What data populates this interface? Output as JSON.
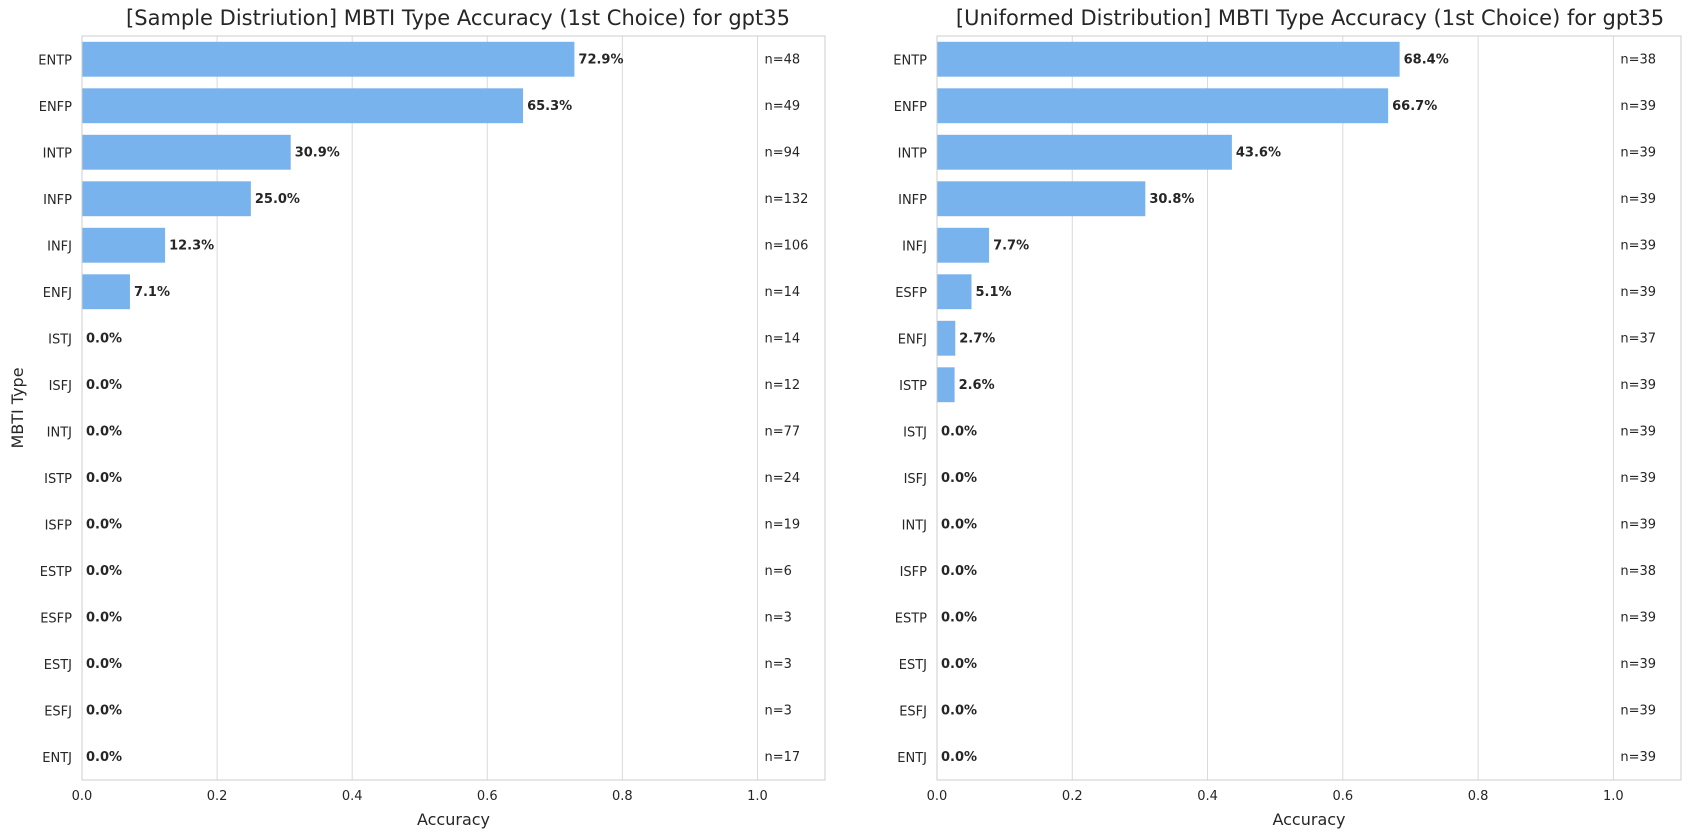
{
  "chart_data": [
    {
      "type": "bar",
      "orientation": "horizontal",
      "title": "[Sample Distriution] MBTI Type Accuracy (1st Choice) for gpt35",
      "xlabel": "Accuracy",
      "ylabel": "MBTI Type",
      "xlim": [
        0,
        1.1
      ],
      "xticks": [
        "0.0",
        "0.2",
        "0.4",
        "0.6",
        "0.8",
        "1.0"
      ],
      "grid": "vertical",
      "bar_color": "#78b3ed",
      "categories": [
        "ENTP",
        "ENFP",
        "INTP",
        "INFP",
        "INFJ",
        "ENFJ",
        "ISTJ",
        "ISFJ",
        "INTJ",
        "ISTP",
        "ISFP",
        "ESTP",
        "ESFP",
        "ESTJ",
        "ESFJ",
        "ENTJ"
      ],
      "values": [
        0.729,
        0.653,
        0.309,
        0.25,
        0.123,
        0.071,
        0,
        0,
        0,
        0,
        0,
        0,
        0,
        0,
        0,
        0
      ],
      "value_labels": [
        "72.9%",
        "65.3%",
        "30.9%",
        "25.0%",
        "12.3%",
        "7.1%",
        "0.0%",
        "0.0%",
        "0.0%",
        "0.0%",
        "0.0%",
        "0.0%",
        "0.0%",
        "0.0%",
        "0.0%",
        "0.0%"
      ],
      "n_labels": [
        "n=48",
        "n=49",
        "n=94",
        "n=132",
        "n=106",
        "n=14",
        "n=14",
        "n=12",
        "n=77",
        "n=24",
        "n=19",
        "n=6",
        "n=3",
        "n=3",
        "n=3",
        "n=17"
      ]
    },
    {
      "type": "bar",
      "orientation": "horizontal",
      "title": "[Uniformed Distribution] MBTI Type Accuracy (1st Choice) for gpt35",
      "xlabel": "Accuracy",
      "ylabel": "",
      "xlim": [
        0,
        1.1
      ],
      "xticks": [
        "0.0",
        "0.2",
        "0.4",
        "0.6",
        "0.8",
        "1.0"
      ],
      "grid": "vertical",
      "bar_color": "#78b3ed",
      "categories": [
        "ENTP",
        "ENFP",
        "INTP",
        "INFP",
        "INFJ",
        "ESFP",
        "ENFJ",
        "ISTP",
        "ISTJ",
        "ISFJ",
        "INTJ",
        "ISFP",
        "ESTP",
        "ESTJ",
        "ESFJ",
        "ENTJ"
      ],
      "values": [
        0.684,
        0.667,
        0.436,
        0.308,
        0.077,
        0.051,
        0.027,
        0.026,
        0,
        0,
        0,
        0,
        0,
        0,
        0,
        0
      ],
      "value_labels": [
        "68.4%",
        "66.7%",
        "43.6%",
        "30.8%",
        "7.7%",
        "5.1%",
        "2.7%",
        "2.6%",
        "0.0%",
        "0.0%",
        "0.0%",
        "0.0%",
        "0.0%",
        "0.0%",
        "0.0%",
        "0.0%"
      ],
      "n_labels": [
        "n=38",
        "n=39",
        "n=39",
        "n=39",
        "n=39",
        "n=39",
        "n=37",
        "n=39",
        "n=39",
        "n=39",
        "n=39",
        "n=38",
        "n=39",
        "n=39",
        "n=39",
        "n=39"
      ]
    }
  ]
}
